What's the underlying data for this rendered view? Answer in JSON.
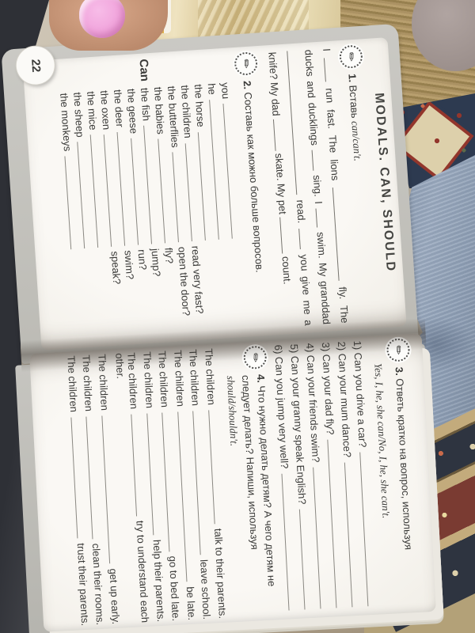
{
  "scene": {
    "description": "photo of an open English workbook held sideways",
    "page_number": "22",
    "colors": {
      "page": "#f8f6f1",
      "cover": "#c2c1bc",
      "text": "#3a3a38",
      "jeans": "#9aa9bd",
      "carpet_red": "#93362c",
      "carpet_navy": "#2d3a50",
      "nail_polish": "#ef9fd9",
      "gold_pillow": "#e0d0a4"
    }
  },
  "left_page": {
    "heading": "MODALS. CAN, SHOULD",
    "ex1": {
      "num": "1.",
      "title": "Вставь",
      "title_example": "can/can't.",
      "tokens": [
        {
          "t": "I"
        },
        {
          "b": 30
        },
        {
          "t": "run fast. The lions"
        },
        {
          "b": 118
        },
        {
          "t": "fly. The ducks and ducklings"
        },
        {
          "b": 26
        },
        {
          "t": "sing. I"
        },
        {
          "b": 24
        },
        {
          "t": "swim. My granddad"
        },
        {
          "b": 182
        },
        {
          "t": "read."
        },
        {
          "b": 26
        },
        {
          "t": "you give me a knife? My dad"
        },
        {
          "b": 40
        },
        {
          "t": "skate. My pet"
        },
        {
          "b": 46
        },
        {
          "t": "count."
        }
      ]
    },
    "ex2": {
      "num": "2.",
      "title": "Составь как можно больше вопросов.",
      "lead": "Can",
      "rows": [
        {
          "subject": "you",
          "question": ""
        },
        {
          "subject": "he",
          "question": ""
        },
        {
          "subject": "the horse",
          "question": ""
        },
        {
          "subject": "the children",
          "question": "read very fast?"
        },
        {
          "subject": "the butterflies",
          "question": "open the door?"
        },
        {
          "subject": "the babies",
          "question": "fly?"
        },
        {
          "subject": "the fish",
          "question": "jump?"
        },
        {
          "subject": "the geese",
          "question": "run?"
        },
        {
          "subject": "the deer",
          "question": "swim?"
        },
        {
          "subject": "the oxen",
          "question": "speak?"
        },
        {
          "subject": "the mice",
          "question": ""
        },
        {
          "subject": "the sheep",
          "question": ""
        },
        {
          "subject": "the monkeys",
          "question": ""
        }
      ]
    }
  },
  "right_page": {
    "ex3": {
      "num": "3.",
      "title": "Ответь кратко на вопрос, используя",
      "title_example": "Yes, I, he, she can/No, I, he, she can't.",
      "questions": [
        "1) Can you drive a car?",
        "2) Can your mum dance?",
        "3) Can your dad fly?",
        "4) Can your friends swim?",
        "5) Can your granny speak English?",
        "6) Can you jump very well?"
      ]
    },
    "ex4": {
      "num": "4.",
      "title": "Что нужно делать детям? А чего детям не следует делать? Напиши, используя",
      "title_example": "should/shouldn't.",
      "sentences": [
        {
          "pre": "The children",
          "post": "talk to their parents."
        },
        {
          "pre": "The children",
          "post": "leave school."
        },
        {
          "pre": "The children",
          "post": "be late."
        },
        {
          "pre": "The children",
          "post": "go to bed late."
        },
        {
          "pre": "The children",
          "post": "help their parents."
        },
        {
          "pre": "The children",
          "post": "try to understand each",
          "cont": "other."
        },
        {
          "pre": "The children",
          "post": "get up early."
        },
        {
          "pre": "The children",
          "post": "clean their rooms."
        },
        {
          "pre": "The children",
          "post": "trust their parents."
        }
      ]
    }
  }
}
